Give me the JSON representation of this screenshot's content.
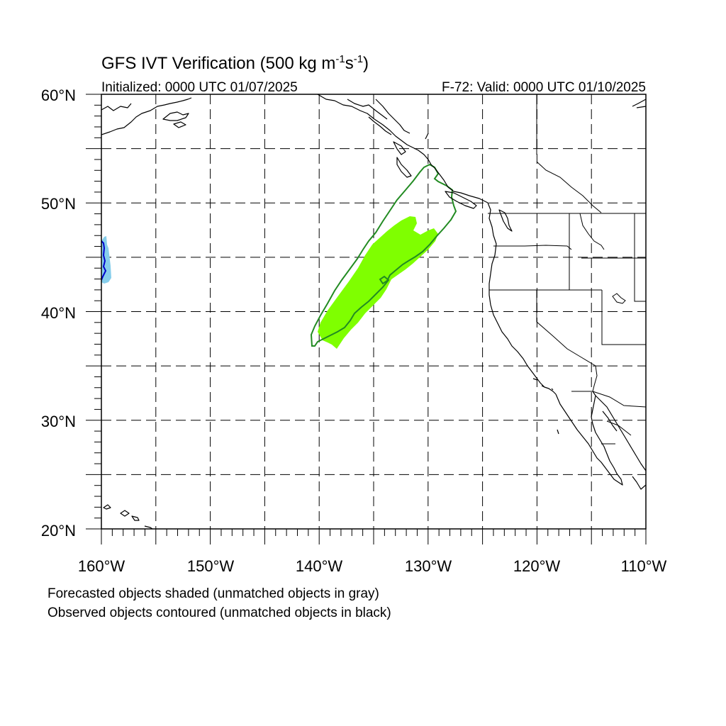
{
  "header": {
    "title_main": "GFS IVT Verification (500 kg m",
    "title_exp1": "-1",
    "title_mid": "s",
    "title_exp2": "-1",
    "title_end": ")",
    "initialized": "Initialized: 0000 UTC 01/07/2025",
    "valid": "F-72: Valid: 0000 UTC 01/10/2025"
  },
  "map": {
    "lon_range": [
      -160,
      -110
    ],
    "lat_range": [
      20,
      60
    ],
    "projection": "cylindrical equidistant",
    "grid": "dashed, every 5 degrees",
    "lat_labels": [
      "60°N",
      "50°N",
      "40°N",
      "30°N",
      "20°N"
    ],
    "lon_labels": [
      "160°W",
      "150°W",
      "140°W",
      "130°W",
      "120°W",
      "110°W"
    ]
  },
  "objects": {
    "forecast_matched_color": "#7fff00",
    "forecast_unmatched_color": "#87ceeb",
    "observed_matched_color": "#228b22",
    "observed_unmatched_color": "#0000cd",
    "coastline_color": "#000000"
  },
  "footer": {
    "line1": "Forecasted objects shaded (unmatched objects in gray)",
    "line2": "Observed objects contoured (unmatched objects in black)"
  }
}
